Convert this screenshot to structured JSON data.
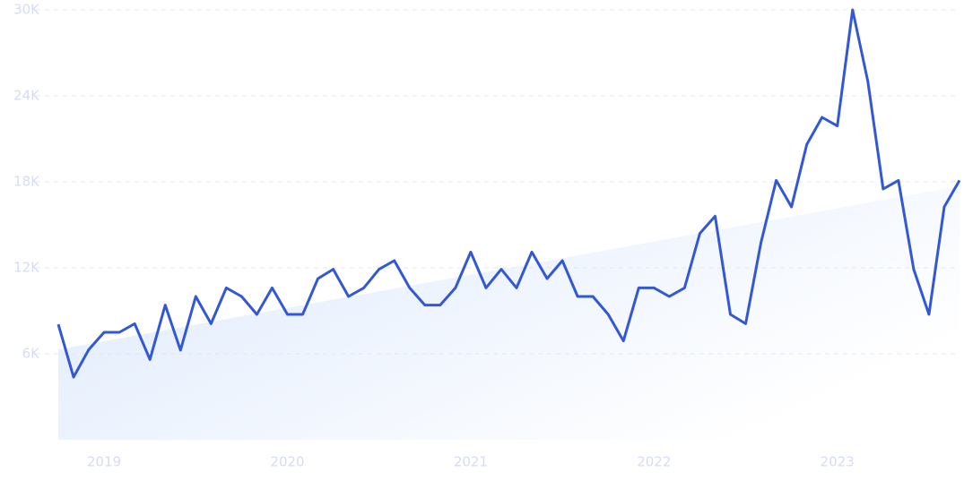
{
  "chart_data": {
    "type": "line",
    "categories": [
      null,
      null,
      null,
      "2019",
      null,
      null,
      null,
      null,
      null,
      null,
      null,
      null,
      null,
      null,
      null,
      "2020",
      null,
      null,
      null,
      null,
      null,
      null,
      null,
      null,
      null,
      null,
      null,
      "2021",
      null,
      null,
      null,
      null,
      null,
      null,
      null,
      null,
      null,
      null,
      null,
      "2022",
      null,
      null,
      null,
      null,
      null,
      null,
      null,
      null,
      null,
      null,
      null,
      "2023",
      null,
      null,
      null,
      null,
      null,
      null,
      null,
      null
    ],
    "series": [
      {
        "color": "#3358d4",
        "values": [
          8060,
          4375,
          6300,
          7500,
          7500,
          8100,
          5600,
          9400,
          6250,
          10000,
          8100,
          10600,
          10000,
          8750,
          10600,
          8750,
          8750,
          11250,
          11900,
          10000,
          10600,
          11900,
          12500,
          10600,
          9400,
          9400,
          10600,
          13100,
          10600,
          11900,
          10600,
          13100,
          11250,
          12500,
          10000,
          10000,
          8750,
          6900,
          10600,
          10600,
          10000,
          10600,
          14400,
          15600,
          8750,
          8100,
          13750,
          18100,
          16250,
          20600,
          22500,
          21900,
          30000,
          25000,
          17500,
          18100,
          11900,
          8750,
          16250,
          18100
        ]
      }
    ],
    "trend": [
      6300,
      17700
    ],
    "ylim": [
      0,
      30000
    ],
    "yticks": [
      {
        "value": 6000,
        "label": "6K"
      },
      {
        "value": 12000,
        "label": "12K"
      },
      {
        "value": 18000,
        "label": "18K"
      },
      {
        "value": 24000,
        "label": "24K"
      },
      {
        "value": 30000,
        "label": "30K"
      }
    ],
    "grid": true
  }
}
